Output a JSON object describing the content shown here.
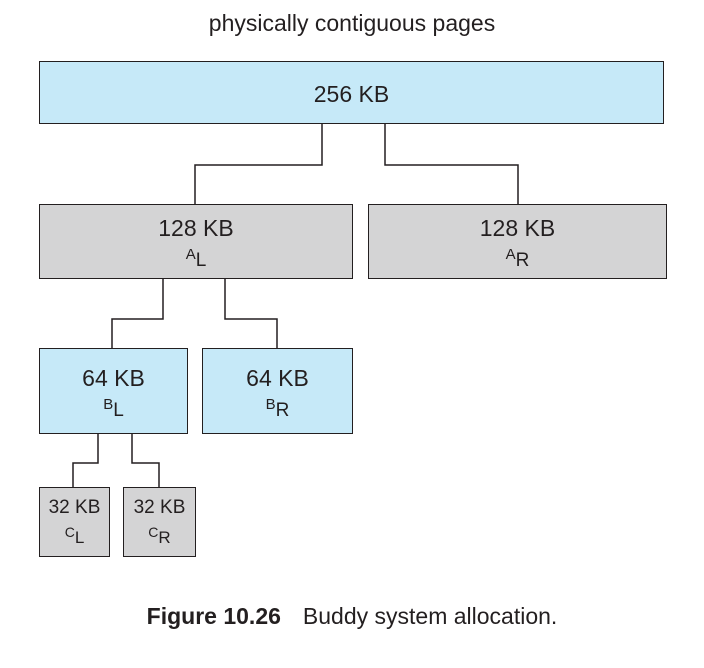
{
  "heading": "physically contiguous pages",
  "blocks": {
    "root": {
      "size": "256 KB"
    },
    "al": {
      "size": "128 KB",
      "base": "A",
      "index": "L"
    },
    "ar": {
      "size": "128 KB",
      "base": "A",
      "index": "R"
    },
    "bl": {
      "size": "64 KB",
      "base": "B",
      "index": "L"
    },
    "br": {
      "size": "64 KB",
      "base": "B",
      "index": "R"
    },
    "cl": {
      "size": "32 KB",
      "base": "C",
      "index": "L"
    },
    "cr": {
      "size": "32 KB",
      "base": "C",
      "index": "R"
    }
  },
  "caption": {
    "figure_label": "Figure 10.26",
    "text": "Buddy system allocation."
  },
  "colors": {
    "unsplit_block": "#c6e9f8",
    "split_block": "#d4d4d5",
    "stroke": "#231f20"
  }
}
